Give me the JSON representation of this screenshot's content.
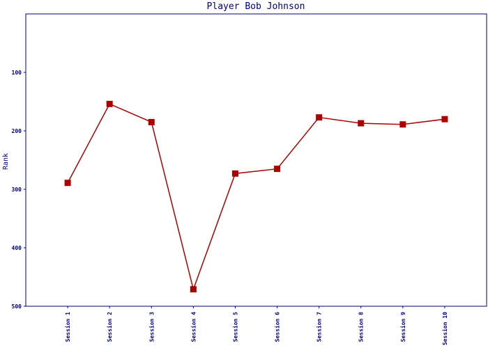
{
  "chart_data": {
    "type": "line",
    "title": "Player Bob Johnson",
    "y_label": "Rank",
    "categories": [
      "Session 1",
      "Session 2",
      "Session 3",
      "Session 4",
      "Session 5",
      "Session 6",
      "Session 7",
      "Session 8",
      "Session 9",
      "Session 10"
    ],
    "series": [
      {
        "name": "Rank",
        "color": "#aa0000",
        "values": [
          289,
          154,
          185,
          471,
          273,
          265,
          177,
          187,
          189,
          180
        ]
      }
    ],
    "ylim": [
      0,
      500
    ],
    "y_inverted": true,
    "yticks": [
      100,
      200,
      300,
      400,
      500
    ],
    "grid": false
  }
}
